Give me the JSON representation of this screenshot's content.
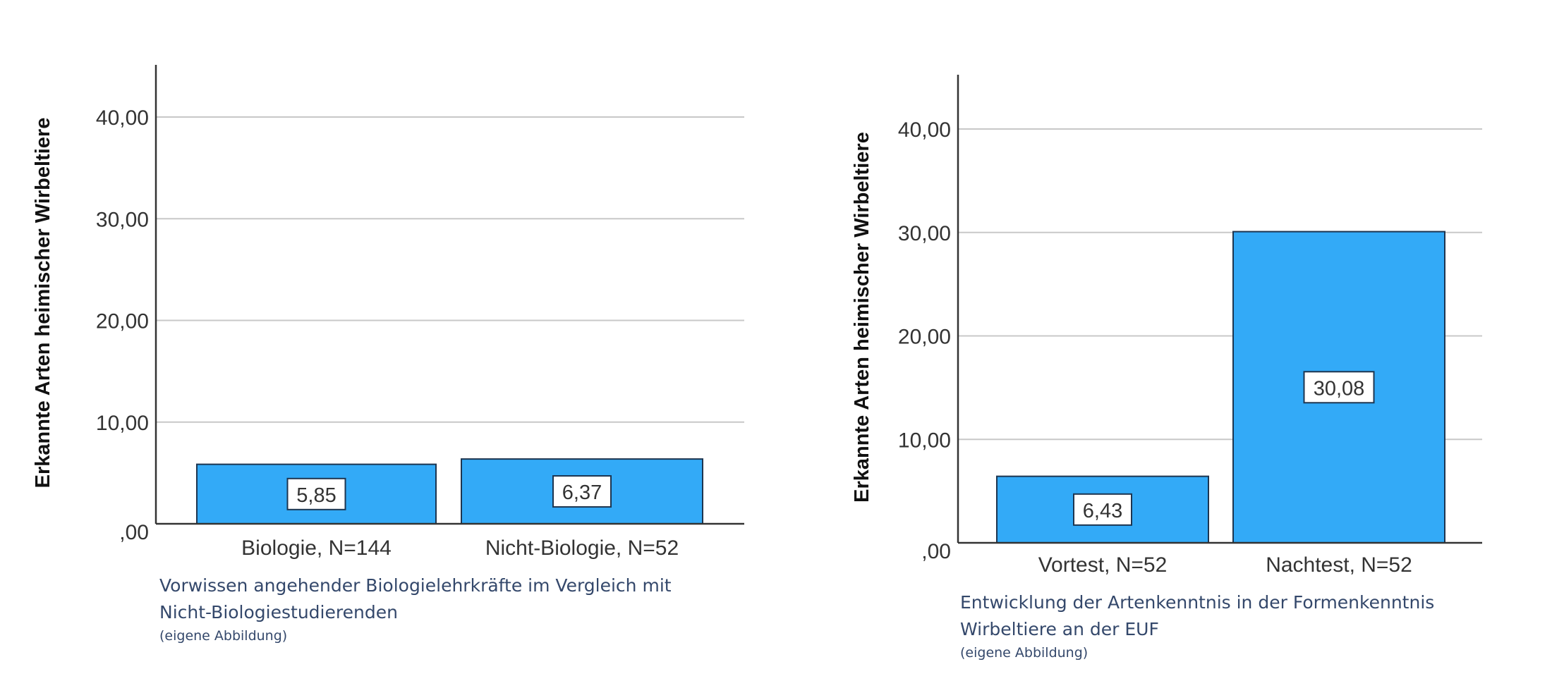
{
  "chart_data": [
    {
      "type": "bar",
      "ylabel": "Erkannte Arten heimischer Wirbeltiere",
      "xlabel": "",
      "categories": [
        "Biologie, N=144",
        "Nicht-Biologie, N=52"
      ],
      "values": [
        5.85,
        6.37
      ],
      "value_labels": [
        "5,85",
        "6,37"
      ],
      "yticks": [
        ",00",
        "10,00",
        "20,00",
        "30,00",
        "40,00"
      ],
      "ytick_values": [
        0,
        10,
        20,
        30,
        40
      ],
      "ylim": [
        0,
        45
      ],
      "grid": true,
      "bar_color": "#33aaf7",
      "caption": [
        "Vorwissen angehender Biologielehrkräfte im Vergleich mit",
        "Nicht-Biologiestudierenden"
      ],
      "caption_note": "(eigene Abbildung)"
    },
    {
      "type": "bar",
      "ylabel": "Erkannte Arten heimischer Wirbeltiere",
      "xlabel": "",
      "categories": [
        "Vortest, N=52",
        "Nachtest, N=52"
      ],
      "values": [
        6.43,
        30.08
      ],
      "value_labels": [
        "6,43",
        "30,08"
      ],
      "yticks": [
        ",00",
        "10,00",
        "20,00",
        "30,00",
        "40,00"
      ],
      "ytick_values": [
        0,
        10,
        20,
        30,
        40
      ],
      "ylim": [
        0,
        45
      ],
      "grid": true,
      "bar_color": "#33aaf7",
      "caption": [
        "Entwicklung der Artenkenntnis in der Formenkenntnis",
        "Wirbeltiere an der EUF"
      ],
      "caption_note": "(eigene Abbildung)"
    }
  ]
}
